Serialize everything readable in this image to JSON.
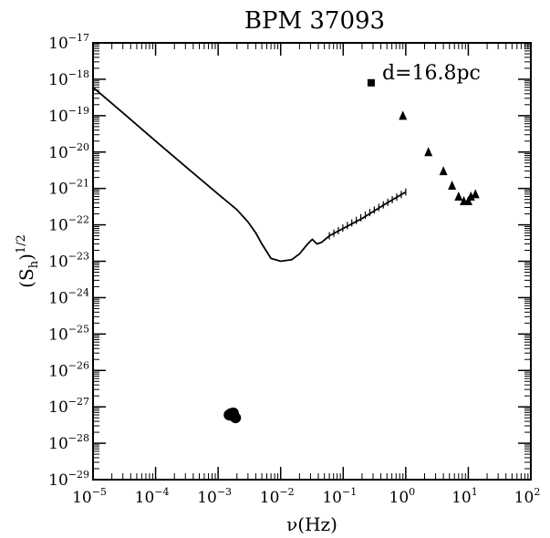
{
  "chart_data": {
    "type": "scatter",
    "title": "BPM 37093",
    "xlabel": "ν(Hz)",
    "ylabel": "(S_h)^1/2",
    "ylabel_parts": {
      "open": "(S",
      "sub": "h",
      "close": ")",
      "sup": "1/2"
    },
    "x_scale": "log",
    "y_scale": "log",
    "xlim": [
      1e-05,
      100
    ],
    "ylim": [
      1e-29,
      1e-17
    ],
    "x_ticks": [
      {
        "value": 1e-05,
        "base": "10",
        "exp": "−5"
      },
      {
        "value": 0.0001,
        "base": "10",
        "exp": "−4"
      },
      {
        "value": 0.001,
        "base": "10",
        "exp": "−3"
      },
      {
        "value": 0.01,
        "base": "10",
        "exp": "−2"
      },
      {
        "value": 0.1,
        "base": "10",
        "exp": "−1"
      },
      {
        "value": 1,
        "base": "10",
        "exp": "0"
      },
      {
        "value": 10,
        "base": "10",
        "exp": "1"
      },
      {
        "value": 100,
        "base": "10",
        "exp": "2"
      }
    ],
    "y_ticks": [
      {
        "value": 1e-17,
        "base": "10",
        "exp": "−17"
      },
      {
        "value": 1e-18,
        "base": "10",
        "exp": "−18"
      },
      {
        "value": 1e-19,
        "base": "10",
        "exp": "−19"
      },
      {
        "value": 1e-20,
        "base": "10",
        "exp": "−20"
      },
      {
        "value": 1e-21,
        "base": "10",
        "exp": "−21"
      },
      {
        "value": 1e-22,
        "base": "10",
        "exp": "−22"
      },
      {
        "value": 1e-23,
        "base": "10",
        "exp": "−23"
      },
      {
        "value": 1e-24,
        "base": "10",
        "exp": "−24"
      },
      {
        "value": 1e-25,
        "base": "10",
        "exp": "−25"
      },
      {
        "value": 1e-26,
        "base": "10",
        "exp": "−26"
      },
      {
        "value": 1e-27,
        "base": "10",
        "exp": "−27"
      },
      {
        "value": 1e-28,
        "base": "10",
        "exp": "−28"
      },
      {
        "value": 1e-29,
        "base": "10",
        "exp": "−29"
      }
    ],
    "annotation": {
      "text": "d=16.8pc",
      "marker": "square",
      "x": 0.28,
      "y": 8e-19
    },
    "series": [
      {
        "marker": "line",
        "points": [
          [
            1e-05,
            6e-19
          ],
          [
            3e-05,
            1.2e-19
          ],
          [
            0.0001,
            2e-20
          ],
          [
            0.0003,
            4e-21
          ],
          [
            0.001,
            7e-22
          ],
          [
            0.002,
            2.6e-22
          ],
          [
            0.003,
            1.2e-22
          ],
          [
            0.004,
            6e-23
          ],
          [
            0.005,
            3e-23
          ],
          [
            0.007,
            1.2e-23
          ],
          [
            0.01,
            1e-23
          ],
          [
            0.015,
            1.1e-23
          ],
          [
            0.02,
            1.6e-23
          ],
          [
            0.027,
            3e-23
          ],
          [
            0.032,
            4e-23
          ],
          [
            0.038,
            3e-23
          ],
          [
            0.045,
            3.3e-23
          ],
          [
            0.06,
            5e-23
          ],
          [
            0.1,
            8e-23
          ],
          [
            0.2,
            1.5e-22
          ],
          [
            0.5,
            4e-22
          ],
          [
            1,
            8e-22
          ]
        ]
      },
      {
        "marker": "circle",
        "points": [
          [
            0.0015,
            6e-28
          ],
          [
            0.0016,
            6.5e-28
          ],
          [
            0.0017,
            6.2e-28
          ],
          [
            0.0018,
            5.5e-28
          ],
          [
            0.0019,
            5e-28
          ],
          [
            0.00165,
            5.8e-28
          ],
          [
            0.00175,
            6.8e-28
          ]
        ]
      },
      {
        "marker": "triangle",
        "points": [
          [
            0.9,
            1e-19
          ],
          [
            2.3,
            1e-20
          ],
          [
            4,
            3e-21
          ],
          [
            5.5,
            1.2e-21
          ],
          [
            7,
            6e-22
          ],
          [
            8.5,
            4.5e-22
          ],
          [
            10,
            4.5e-22
          ],
          [
            11,
            6e-22
          ],
          [
            13,
            7e-22
          ]
        ]
      }
    ],
    "grid": false,
    "colors": {
      "ink": "#000000",
      "background": "#ffffff"
    }
  }
}
